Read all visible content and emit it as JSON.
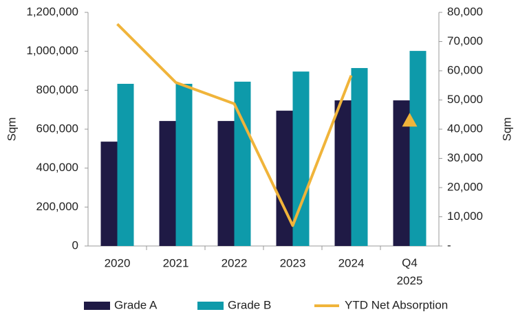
{
  "chart_data": {
    "type": "bar-line",
    "categories": [
      "2020",
      "2021",
      "2022",
      "2023",
      "2024",
      "Q4 2025"
    ],
    "series": [
      {
        "name": "Grade A",
        "type": "bar",
        "color": "#1f1a45",
        "values": [
          536000,
          642000,
          642000,
          695000,
          748000,
          748000
        ]
      },
      {
        "name": "Grade B",
        "type": "bar",
        "color": "#0e9aaa",
        "values": [
          833000,
          833000,
          844000,
          896000,
          914000,
          1002000
        ]
      },
      {
        "name": "YTD Net Absorption",
        "type": "line",
        "axis": "y2",
        "color": "#f0b43a",
        "values": [
          76000,
          56000,
          48700,
          7000,
          58400,
          43000
        ],
        "last_point_marker": "triangle"
      }
    ],
    "ylabel": "Sqm",
    "y2label": "Sqm",
    "ylim": [
      0,
      1200000
    ],
    "yticks": [
      0,
      {
        "value": 200000,
        "label": "200,000"
      },
      {
        "value": 400000,
        "label": "400,000"
      },
      {
        "value": 600000,
        "label": "600,000"
      },
      {
        "value": 800000,
        "label": "800,000"
      },
      {
        "value": 1000000,
        "label": "1,000,000"
      },
      {
        "value": 1200000,
        "label": "1,200,000"
      }
    ],
    "y2lim": [
      0,
      80000
    ],
    "y2ticks": [
      {
        "value": 0,
        "label": "-"
      },
      {
        "value": 10000,
        "label": "10,000"
      },
      {
        "value": 20000,
        "label": "20,000"
      },
      {
        "value": 30000,
        "label": "30,000"
      },
      {
        "value": 40000,
        "label": "40,000"
      },
      {
        "value": 50000,
        "label": "50,000"
      },
      {
        "value": 60000,
        "label": "60,000"
      },
      {
        "value": 70000,
        "label": "70,000"
      },
      {
        "value": 80000,
        "label": "80,000"
      }
    ],
    "legend": "bottom"
  }
}
